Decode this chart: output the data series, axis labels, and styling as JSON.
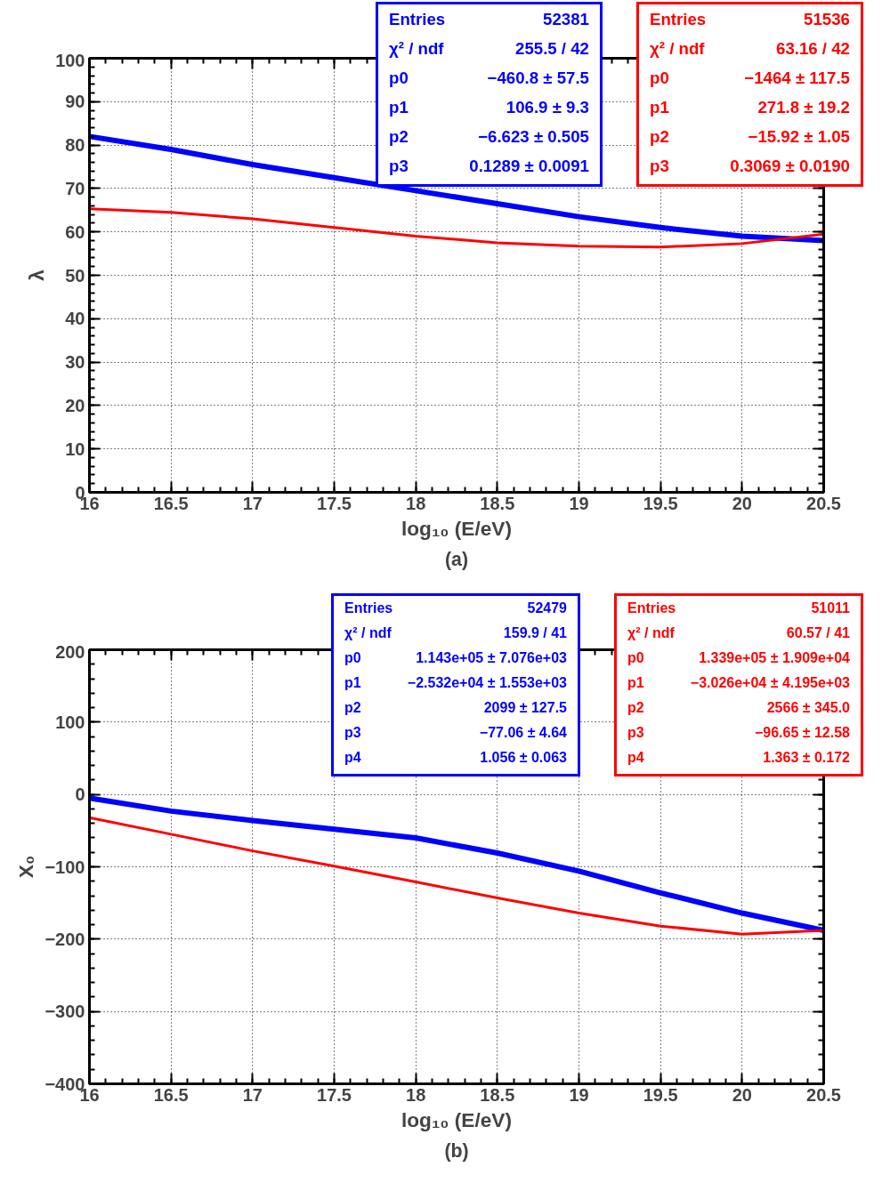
{
  "chart_data": [
    {
      "type": "line",
      "title": "(a)",
      "xlabel": "log₁₀ (E/eV)",
      "ylabel": "λ",
      "x": [
        16,
        16.5,
        17,
        17.5,
        18,
        18.5,
        19,
        19.5,
        20,
        20.5
      ],
      "series": [
        {
          "color": "#0000ff",
          "values": [
            82,
            79,
            75.5,
            72.5,
            69.5,
            66.5,
            63.5,
            61,
            59,
            58
          ]
        },
        {
          "color": "#ff0000",
          "values": [
            65.3,
            64.5,
            63,
            61,
            59,
            57.5,
            56.7,
            56.5,
            57.3,
            59.5
          ]
        }
      ],
      "xlim": [
        16,
        20.5
      ],
      "ylim": [
        0,
        100
      ],
      "xticks": [
        16,
        16.5,
        17,
        17.5,
        18,
        18.5,
        19,
        19.5,
        20,
        20.5
      ],
      "yticks": [
        0,
        10,
        20,
        30,
        40,
        50,
        60,
        70,
        80,
        90,
        100
      ],
      "grid": true,
      "line_style": "solid",
      "marker": "none",
      "annotations": [
        "Entries",
        "52381",
        "χ² / ndf",
        "255.5 / 42",
        "p0",
        "−460.8 ± 57.5",
        "p1",
        "106.9 ± 9.3",
        "p2",
        "−6.623 ± 0.505",
        "p3",
        "0.1289 ± 0.0091",
        "Entries",
        "51536",
        "χ² / ndf",
        "63.16 / 42",
        "p0",
        "−1464 ± 117.5",
        "p1",
        "271.8 ± 19.2",
        "p2",
        "−15.92 ± 1.05",
        "p3",
        "0.3069 ± 0.0190"
      ]
    },
    {
      "type": "line",
      "title": "(b)",
      "xlabel": "log₁₀ (E/eV)",
      "ylabel": "X₀",
      "x": [
        16,
        16.5,
        17,
        17.5,
        18,
        18.5,
        19,
        19.5,
        20,
        20.5
      ],
      "series": [
        {
          "color": "#0000ff",
          "values": [
            -5,
            -23,
            -36,
            -48,
            -60,
            -81,
            -106,
            -136,
            -164,
            -188
          ]
        },
        {
          "color": "#ff0000",
          "values": [
            -32,
            -55,
            -78,
            -99,
            -121,
            -143,
            -164,
            -182,
            -193,
            -188
          ]
        }
      ],
      "xlim": [
        16,
        20.5
      ],
      "ylim": [
        -400,
        200
      ],
      "xticks": [
        16,
        16.5,
        17,
        17.5,
        18,
        18.5,
        19,
        19.5,
        20,
        20.5
      ],
      "yticks": [
        {
          "value": -400,
          "label": "−400"
        },
        {
          "value": -300,
          "label": "−300"
        },
        {
          "value": -200,
          "label": "−200"
        },
        {
          "value": -100,
          "label": "−100"
        },
        0,
        100,
        200
      ],
      "grid": true,
      "line_style": "solid",
      "marker": "none",
      "annotations": [
        "Entries",
        "52479",
        "χ² / ndf",
        "159.9 / 41",
        "p0",
        "1.143e+05 ± 7.076e+03",
        "p1",
        "−2.532e+04 ± 1.553e+03",
        "p2",
        "2099 ± 127.5",
        "p3",
        "−77.06 ± 4.64",
        "p4",
        "1.056 ± 0.063",
        "Entries",
        "51011",
        "χ² / ndf",
        "60.57 / 41",
        "p0",
        "1.339e+05 ± 1.909e+04",
        "p1",
        "−3.026e+04 ± 4.195e+03",
        "p2",
        "2566 ± 345.0",
        "p3",
        "−96.65 ± 12.58",
        "p4",
        "1.363 ± 0.172"
      ]
    }
  ]
}
